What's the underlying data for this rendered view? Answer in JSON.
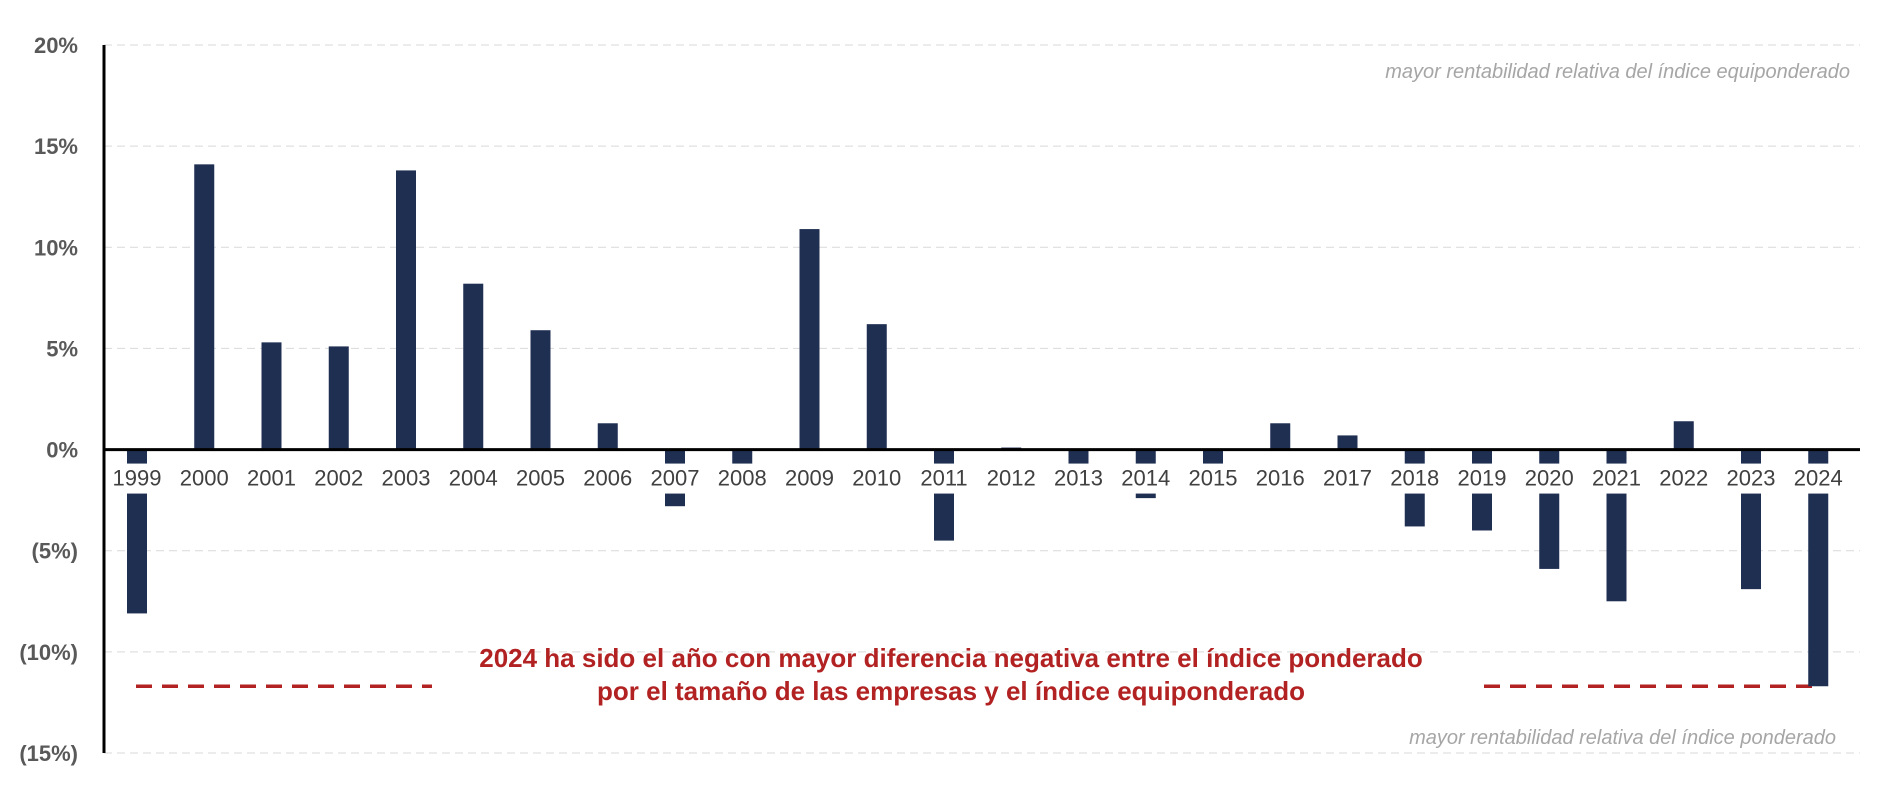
{
  "chart_data": {
    "type": "bar",
    "title": "",
    "xlabel": "",
    "ylabel": "",
    "categories": [
      "1999",
      "2000",
      "2001",
      "2002",
      "2003",
      "2004",
      "2005",
      "2006",
      "2007",
      "2008",
      "2009",
      "2010",
      "2011",
      "2012",
      "2013",
      "2014",
      "2015",
      "2016",
      "2017",
      "2018",
      "2019",
      "2020",
      "2021",
      "2022",
      "2023",
      "2024"
    ],
    "values": [
      -8.1,
      14.1,
      5.3,
      5.1,
      13.8,
      8.2,
      5.9,
      1.3,
      -2.8,
      -0.7,
      10.9,
      6.2,
      -4.5,
      0.1,
      -0.7,
      -2.4,
      -0.7,
      1.3,
      0.7,
      -3.8,
      -4.0,
      -5.9,
      -7.5,
      1.4,
      -6.9,
      -11.7
    ],
    "ylim": [
      -15,
      20
    ],
    "yticks": [
      20,
      15,
      10,
      5,
      0,
      -5,
      -10,
      -15
    ],
    "ytick_labels": [
      "20%",
      "15%",
      "10%",
      "5%",
      "0%",
      "(5%)",
      "(10%)",
      "(15%)"
    ],
    "grid": true,
    "bar_color": "#1f2f52",
    "reference_line": {
      "value": -11.7,
      "color": "#b22222",
      "style": "dashed"
    },
    "annotations": {
      "top_note": "mayor rentabilidad relativa del índice equiponderado",
      "bottom_note": "mayor rentabilidad relativa del índice ponderado",
      "callout_line1": "2024 ha sido el año con mayor diferencia negativa entre el índice ponderado",
      "callout_line2": "por el tamaño de las empresas y el índice equiponderado"
    }
  }
}
